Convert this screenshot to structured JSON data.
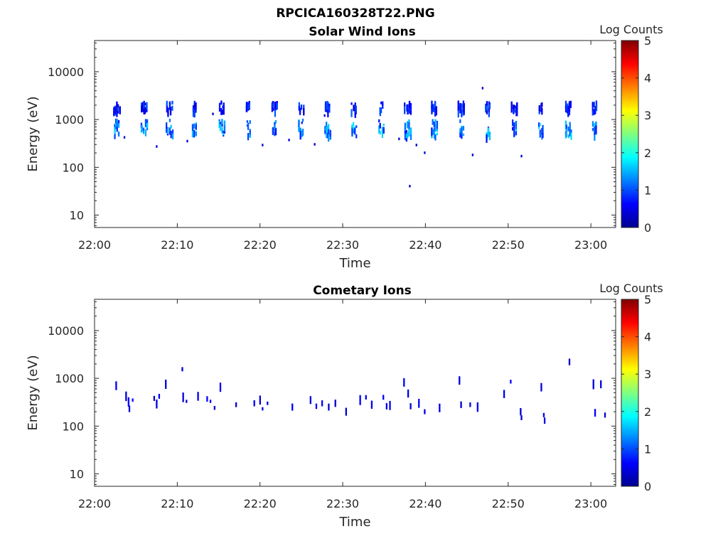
{
  "figure_title": "RPCICA160328T22.PNG",
  "chart_data": [
    {
      "type": "heatmap",
      "title": "Solar Wind Ions",
      "xlabel": "Time",
      "ylabel": "Energy (eV)",
      "yscale": "log",
      "ylim": [
        5.5,
        45000
      ],
      "xlim": [
        "22:00",
        "23:03"
      ],
      "xticks": [
        "22:00",
        "22:10",
        "22:20",
        "22:30",
        "22:40",
        "22:50",
        "23:00"
      ],
      "yticks": [
        "10",
        "100",
        "1000",
        "10000"
      ],
      "colorbar": {
        "label": "Log Counts",
        "range": [
          0,
          5
        ],
        "ticks": [
          "0",
          "1",
          "2",
          "3",
          "4",
          "5"
        ]
      },
      "grid": false,
      "sweep_times_min": [
        2.6,
        5.9,
        9.0,
        12.0,
        15.3,
        18.5,
        21.7,
        24.9,
        28.1,
        31.3,
        34.6,
        37.8,
        41.0,
        44.3,
        47.5,
        50.7,
        53.9,
        57.2,
        60.4
      ],
      "bands": [
        {
          "center_ev": 2000,
          "width_ev_low": 1600,
          "width_ev_high": 2500,
          "log_counts_peak": 1.0
        },
        {
          "center_ev": 750,
          "width_ev_low": 480,
          "width_ev_high": 1050,
          "log_counts_peak": 1.6
        }
      ],
      "isolated_points": [
        {
          "t": 3.6,
          "ev": 420
        },
        {
          "t": 7.5,
          "ev": 270
        },
        {
          "t": 11.2,
          "ev": 350
        },
        {
          "t": 14.3,
          "ev": 1300
        },
        {
          "t": 20.3,
          "ev": 290
        },
        {
          "t": 23.5,
          "ev": 370
        },
        {
          "t": 26.6,
          "ev": 300
        },
        {
          "t": 27.8,
          "ev": 1200
        },
        {
          "t": 36.8,
          "ev": 390
        },
        {
          "t": 38.1,
          "ev": 40
        },
        {
          "t": 38.9,
          "ev": 290
        },
        {
          "t": 39.9,
          "ev": 200
        },
        {
          "t": 45.7,
          "ev": 180
        },
        {
          "t": 46.9,
          "ev": 4500
        },
        {
          "t": 51.6,
          "ev": 170
        }
      ]
    },
    {
      "type": "heatmap",
      "title": "Cometary Ions",
      "xlabel": "Time",
      "ylabel": "Energy (eV)",
      "yscale": "log",
      "ylim": [
        5.5,
        45000
      ],
      "xlim": [
        "22:00",
        "23:03"
      ],
      "xticks": [
        "22:00",
        "22:10",
        "22:20",
        "22:30",
        "22:40",
        "22:50",
        "23:00"
      ],
      "yticks": [
        "10",
        "100",
        "1000",
        "10000"
      ],
      "colorbar": {
        "label": "Log Counts",
        "range": [
          0,
          5
        ],
        "ticks": [
          "0",
          "1",
          "2",
          "3",
          "4",
          "5"
        ]
      },
      "grid": false,
      "points": [
        {
          "t": 2.6,
          "ev": 700
        },
        {
          "t": 3.8,
          "ev": 420
        },
        {
          "t": 4.1,
          "ev": 320
        },
        {
          "t": 4.2,
          "ev": 230
        },
        {
          "t": 4.6,
          "ev": 350
        },
        {
          "t": 7.2,
          "ev": 380
        },
        {
          "t": 7.5,
          "ev": 290
        },
        {
          "t": 7.8,
          "ev": 420
        },
        {
          "t": 8.6,
          "ev": 750
        },
        {
          "t": 10.6,
          "ev": 1550
        },
        {
          "t": 10.7,
          "ev": 400
        },
        {
          "t": 11.1,
          "ev": 330
        },
        {
          "t": 12.5,
          "ev": 420
        },
        {
          "t": 13.6,
          "ev": 370
        },
        {
          "t": 14.0,
          "ev": 330
        },
        {
          "t": 14.5,
          "ev": 240
        },
        {
          "t": 15.2,
          "ev": 650
        },
        {
          "t": 17.1,
          "ev": 280
        },
        {
          "t": 19.3,
          "ev": 300
        },
        {
          "t": 20.0,
          "ev": 350
        },
        {
          "t": 20.3,
          "ev": 230
        },
        {
          "t": 20.9,
          "ev": 300
        },
        {
          "t": 23.9,
          "ev": 250
        },
        {
          "t": 26.1,
          "ev": 350
        },
        {
          "t": 26.8,
          "ev": 260
        },
        {
          "t": 27.5,
          "ev": 300
        },
        {
          "t": 28.3,
          "ev": 250
        },
        {
          "t": 29.1,
          "ev": 300
        },
        {
          "t": 30.4,
          "ev": 200
        },
        {
          "t": 32.1,
          "ev": 350
        },
        {
          "t": 32.8,
          "ev": 400
        },
        {
          "t": 33.5,
          "ev": 280
        },
        {
          "t": 34.9,
          "ev": 400
        },
        {
          "t": 35.3,
          "ev": 260
        },
        {
          "t": 35.7,
          "ev": 270
        },
        {
          "t": 37.4,
          "ev": 820
        },
        {
          "t": 37.9,
          "ev": 480
        },
        {
          "t": 38.2,
          "ev": 260
        },
        {
          "t": 39.2,
          "ev": 300
        },
        {
          "t": 39.9,
          "ev": 200
        },
        {
          "t": 41.7,
          "ev": 240
        },
        {
          "t": 44.1,
          "ev": 900
        },
        {
          "t": 44.3,
          "ev": 280
        },
        {
          "t": 45.4,
          "ev": 280
        },
        {
          "t": 46.3,
          "ev": 250
        },
        {
          "t": 49.5,
          "ev": 470
        },
        {
          "t": 50.3,
          "ev": 850
        },
        {
          "t": 51.5,
          "ev": 200
        },
        {
          "t": 51.6,
          "ev": 150
        },
        {
          "t": 54.0,
          "ev": 650
        },
        {
          "t": 54.3,
          "ev": 170
        },
        {
          "t": 54.4,
          "ev": 130
        },
        {
          "t": 57.4,
          "ev": 2200
        },
        {
          "t": 60.3,
          "ev": 750
        },
        {
          "t": 60.5,
          "ev": 190
        },
        {
          "t": 61.2,
          "ev": 750
        },
        {
          "t": 61.7,
          "ev": 170
        }
      ]
    }
  ]
}
